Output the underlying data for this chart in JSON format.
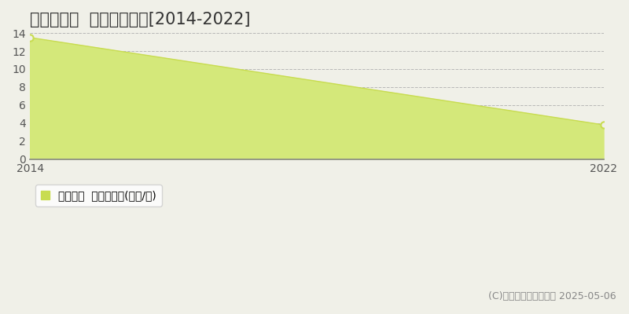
{
  "title": "坂東市馬立  住宅価格推移[2014-2022]",
  "x": [
    2014,
    2022
  ],
  "y": [
    13.5,
    3.8
  ],
  "ylim": [
    0,
    14
  ],
  "yticks": [
    0,
    2,
    4,
    6,
    8,
    10,
    12,
    14
  ],
  "xticks": [
    2014,
    2022
  ],
  "line_color": "#c8dc50",
  "fill_color": "#d4e87a",
  "marker_color": "#c8dc50",
  "bg_color": "#f0f0e8",
  "plot_bg_color": "#f0f0e8",
  "legend_label": "住宅価格  平均嵪単価(万円/嵪)",
  "legend_square_color": "#c8dc50",
  "copyright": "(C)土地価格ドットコム 2025-05-06",
  "title_fontsize": 15,
  "axis_fontsize": 10,
  "legend_fontsize": 10,
  "copyright_fontsize": 9
}
